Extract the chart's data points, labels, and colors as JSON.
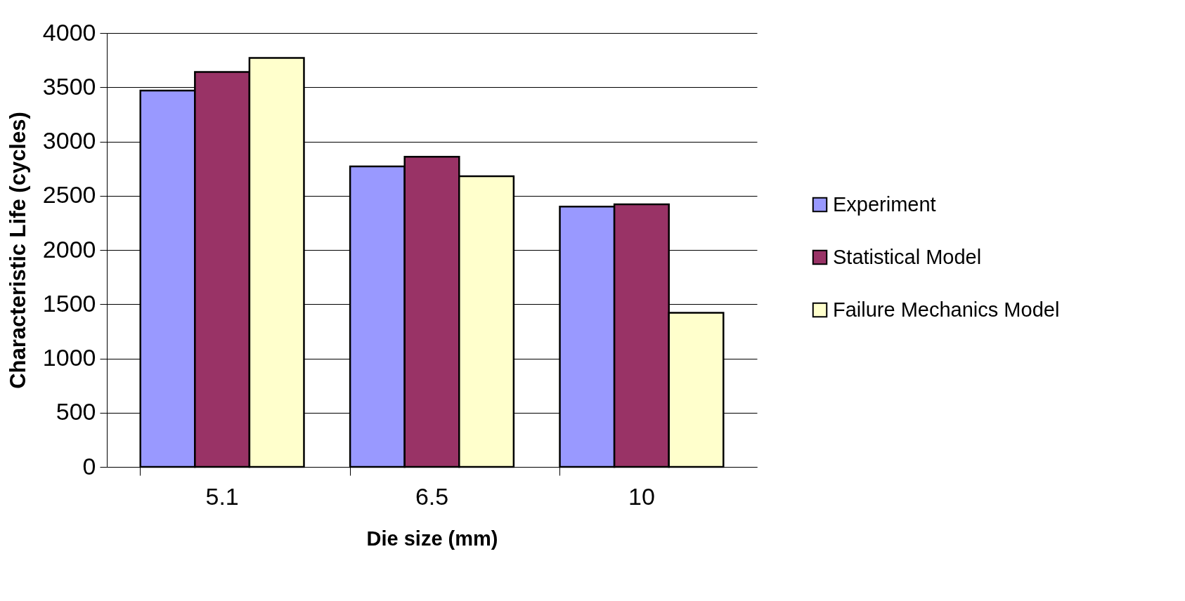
{
  "chart_data": {
    "type": "bar",
    "xlabel": "Die size (mm)",
    "ylabel": "Characteristic Life (cycles)",
    "categories": [
      "5.1",
      "6.5",
      "10"
    ],
    "series": [
      {
        "name": "Experiment",
        "color": "#9999ff",
        "values": [
          3470,
          2770,
          2400
        ]
      },
      {
        "name": "Statistical Model",
        "color": "#993366",
        "values": [
          3640,
          2860,
          2420
        ]
      },
      {
        "name": "Failure Mechanics Model",
        "color": "#ffffcc",
        "values": [
          3770,
          2680,
          1420
        ]
      }
    ],
    "ylim": [
      0,
      4000
    ],
    "yticks": [
      0,
      500,
      1000,
      1500,
      2000,
      2500,
      3000,
      3500,
      4000
    ],
    "grid": "y",
    "legend": "right"
  }
}
